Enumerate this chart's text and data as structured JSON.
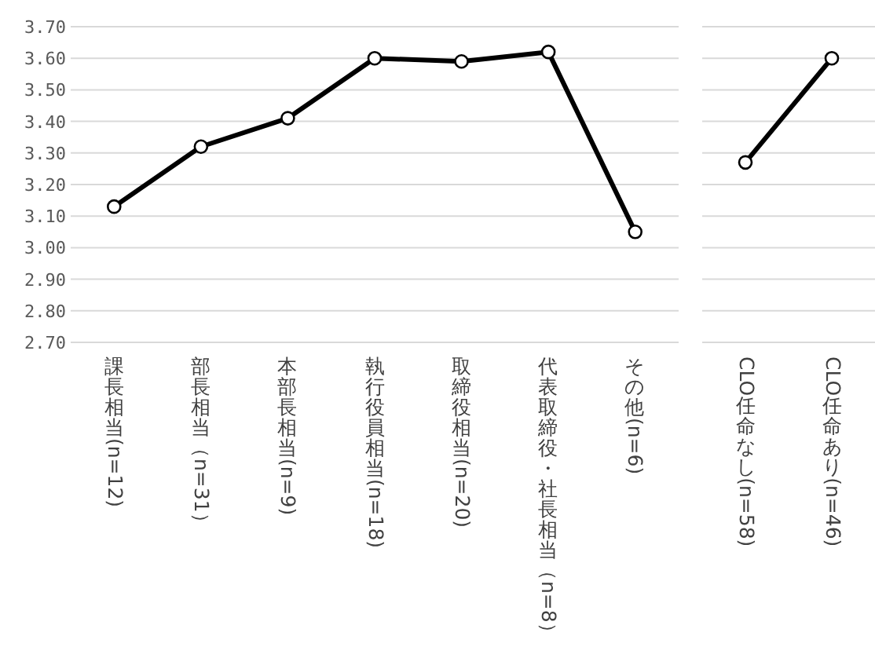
{
  "chart_data": [
    {
      "type": "line",
      "categories": [
        "課長相当(n=12)",
        "部長相当（n=31）",
        "本部長相当(n=9)",
        "執行役員相当(n=18)",
        "取締役相当(n=20)",
        "代表取締役・社長相当（n=8）",
        "その他(n=6)"
      ],
      "series": [
        {
          "color": "#000000",
          "values": [
            3.13,
            3.32,
            3.41,
            3.6,
            3.59,
            3.62,
            3.05
          ]
        }
      ],
      "ylim": [
        2.7,
        3.7
      ],
      "yticks": [
        {
          "value": 2.7,
          "label": "2.70"
        },
        {
          "value": 2.8,
          "label": "2.80"
        },
        {
          "value": 2.9,
          "label": "2.90"
        },
        {
          "value": 3.0,
          "label": "3.00"
        },
        {
          "value": 3.1,
          "label": "3.10"
        },
        {
          "value": 3.2,
          "label": "3.20"
        },
        {
          "value": 3.3,
          "label": "3.30"
        },
        {
          "value": 3.4,
          "label": "3.40"
        },
        {
          "value": 3.5,
          "label": "3.50"
        },
        {
          "value": 3.6,
          "label": "3.60"
        },
        {
          "value": 3.7,
          "label": "3.70"
        }
      ],
      "grid": "y",
      "marker": "circle"
    },
    {
      "type": "line",
      "categories": [
        "CLO任命なし(n=58)",
        "CLO任命あり(n=46)"
      ],
      "series": [
        {
          "color": "#000000",
          "values": [
            3.27,
            3.6
          ]
        }
      ],
      "ylim": [
        2.7,
        3.7
      ],
      "yticks": [
        2.7,
        2.8,
        2.9,
        3.0,
        3.1,
        3.2,
        3.3,
        3.4,
        3.5,
        3.6,
        3.7
      ],
      "grid": "y",
      "marker": "circle",
      "tick_labels": "x"
    }
  ]
}
